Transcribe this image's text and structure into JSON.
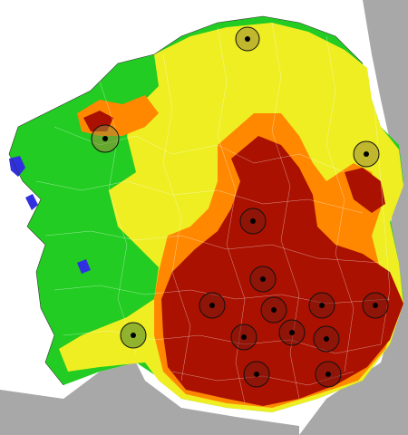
{
  "map": {
    "colors": {
      "sea": "#ffffff",
      "outside_land": "#a8a8a8",
      "class_1": "#3030e0",
      "class_2": "#22cc22",
      "class_3": "#eeee22",
      "class_4": "#ff8800",
      "class_5": "#aa1100",
      "boundary": "#ffffff"
    },
    "stations": [
      {
        "id": "station-north"
      },
      {
        "id": "station-west-upper"
      },
      {
        "id": "station-east-upper"
      },
      {
        "id": "station-south-west"
      },
      {
        "id": "station-inland-1"
      },
      {
        "id": "station-inland-2"
      },
      {
        "id": "station-inland-3"
      },
      {
        "id": "station-inland-4"
      },
      {
        "id": "station-inland-5"
      },
      {
        "id": "station-inland-6"
      },
      {
        "id": "station-inland-7"
      },
      {
        "id": "station-inland-8"
      },
      {
        "id": "station-inland-9"
      },
      {
        "id": "station-inland-10"
      },
      {
        "id": "station-inland-11"
      },
      {
        "id": "station-inland-12"
      }
    ]
  }
}
